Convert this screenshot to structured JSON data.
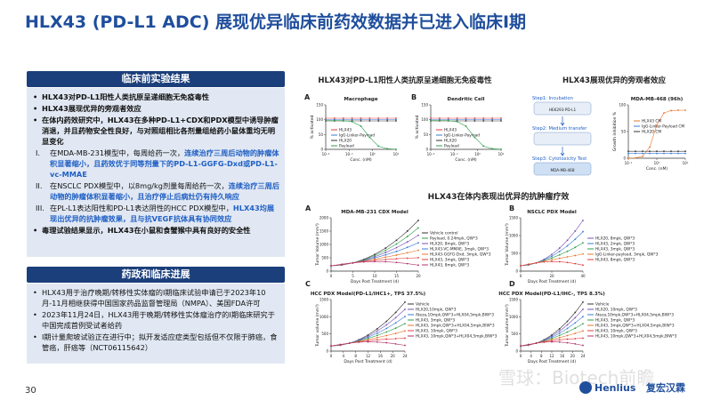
{
  "header": {
    "title": "HLX43 (PD-L1 ADC) 展现优异临床前药效数据并已进入临床I期"
  },
  "preclinical": {
    "heading": "临床前实验结果",
    "items": [
      {
        "marker": "",
        "parts": [
          {
            "text": "HLX43对PD-L1阳性人类抗原呈递细胞无免疫毒性",
            "hl": false
          }
        ],
        "bold": true
      },
      {
        "marker": "",
        "parts": [
          {
            "text": "HLX43展现优异的旁观者效应",
            "hl": false
          }
        ],
        "bold": true
      },
      {
        "marker": "",
        "parts": [
          {
            "text": "在体内药效研究中，HLX43在多种PD-L1+CDX和PDX模型中诱导肿瘤消退，并且药物安全性良好，与对照组相比各剂量组给药小鼠体重均无明显变化",
            "hl": false
          }
        ],
        "bold": true
      },
      {
        "marker": "I.",
        "parts": [
          {
            "text": "在MDA-MB-231模型中，每周给药一次，",
            "hl": false
          },
          {
            "text": "连续治疗三周后动物的肿瘤体积显著缩小，且药效优于同等剂量下的PD-L1-GGFG-Dxd或PD-L1-vc-MMAE",
            "hl": true
          }
        ],
        "bold": false
      },
      {
        "marker": "II.",
        "parts": [
          {
            "text": "在NSCLC PDX模型中，以8mg/kg剂量每周给药一次，",
            "hl": false
          },
          {
            "text": "连续治疗三周后动物的肿瘤体积显著缩小，且治疗停止后病灶仍有持久响应",
            "hl": true
          }
        ],
        "bold": false
      },
      {
        "marker": "III.",
        "parts": [
          {
            "text": "在PL-L1表达阳性和PD-L1表达阴性的HCC PDX模型中，",
            "hl": false
          },
          {
            "text": "HLX43均展现出优异的抗肿瘤效果，且与抗VEGF抗体具有协同效应",
            "hl": true
          }
        ],
        "bold": false
      },
      {
        "marker": "",
        "parts": [
          {
            "text": "毒理试验结果显示，HLX43在小鼠和食蟹猴中具有良好的安全性",
            "hl": false
          }
        ],
        "bold": true
      }
    ]
  },
  "regulatory": {
    "heading": "药政和临床进展",
    "items": [
      "HLX43用于治疗晚期/转移性实体瘤的I期临床试验申请已于2023年10月-11月相继获得中国国家药品监督管理局（NMPA）、美国FDA许可",
      "2023年11月24日，HLX43用于晚期/转移性实体瘤治疗的I期临床研究于中国完成首例受试者给药",
      "I期计量爬坡试验正在进行中；拟开发适应症类型包括但不仅限于肺癌，食管癌，肝癌等（NCT06115642）"
    ]
  },
  "figures": {
    "invitro": {
      "title": "HLX43对PD-L1阳性人类抗原呈递细胞无免疫毒性",
      "panels": [
        {
          "letter": "A",
          "title": "Macrophage",
          "ylabel": "% activated",
          "xlabel": "Conc. (nM)",
          "yticks": [
            "0",
            "50",
            "100",
            "150"
          ],
          "xticks": [
            "10⁻⁴",
            "10⁻²",
            "10⁰",
            "10²"
          ],
          "legend": [
            {
              "name": "HLX43",
              "color": "#e23b3b"
            },
            {
              "name": "IgG-Linker-Payload",
              "color": "#3a7bd5"
            },
            {
              "name": "HLX20",
              "color": "#333333"
            },
            {
              "name": "Payload",
              "color": "#2e9e4a"
            }
          ]
        },
        {
          "letter": "B",
          "title": "Dendritic Cell",
          "ylabel": "% activated",
          "xlabel": "Conc. (nM)",
          "yticks": [
            "0",
            "50",
            "100",
            "150"
          ],
          "xticks": [
            "10⁻⁴",
            "10⁻²",
            "10⁰",
            "10²"
          ],
          "legend": [
            {
              "name": "HLX43",
              "color": "#e23b3b"
            },
            {
              "name": "IgG-Linker-Payload",
              "color": "#3a7bd5"
            },
            {
              "name": "HLX20",
              "color": "#333333"
            },
            {
              "name": "Payload",
              "color": "#2e9e4a"
            }
          ]
        }
      ]
    },
    "bystander": {
      "title": "HLX43展现优异的旁观者效应",
      "steps": [
        "Step1: Incubation",
        "Step2: Medium transfer",
        "Step3: Cytotoxicity Test"
      ],
      "cells": [
        "HEK293-PD-L1",
        "MDA-MB-468"
      ],
      "panel": {
        "title": "MDA-MB-468 (96h)",
        "ylabel": "Growth inhibition %",
        "xlabel": "Conc. (nM)",
        "yticks": [
          "0",
          "50",
          "100"
        ],
        "xticks": [
          "10⁻²",
          "10⁰",
          "10²"
        ],
        "legend": [
          {
            "name": "HLX43 CM",
            "color": "#e8742a"
          },
          {
            "name": "IgG-Linker-Payload CM",
            "color": "#3a7bd5"
          },
          {
            "name": "HLX20 CM",
            "color": "#333333"
          }
        ]
      }
    },
    "invivo": {
      "title": "HLX43在体内表现出优异的抗肿瘤疗效",
      "panels": [
        {
          "letter": "A",
          "title": "MDA-MB-231 CDX Model",
          "ylabel": "Tumor Volume (mm³)",
          "xlabel": "Days Post Treatment (d)",
          "yticks": [
            "0",
            "500",
            "1000",
            "1500",
            "2000"
          ],
          "xticks": [
            "0",
            "5",
            "10",
            "15",
            "20"
          ],
          "legend": [
            {
              "name": "Vehicle control",
              "color": "#333333"
            },
            {
              "name": "Payload, 0.24mpk, QW*3",
              "color": "#2e9e4a"
            },
            {
              "name": "HLX20, 8mpk, QW*3",
              "color": "#7a4fb5"
            },
            {
              "name": "HLX43-VC-MMAE, 3mpk, QW*3",
              "color": "#3a7bd5"
            },
            {
              "name": "HLX43-GGFG-Dxd, 3mpk, QW*3",
              "color": "#e8742a"
            },
            {
              "name": "HLX43, 3mpk, QW*3",
              "color": "#e23b3b"
            },
            {
              "name": "HLX43, 8mpk, QW*3",
              "color": "#b0306a"
            }
          ]
        },
        {
          "letter": "B",
          "title": "NSCLC PDX Model",
          "ylabel": "Tumor Volume (mm³)",
          "xlabel": "Days Post Treatment (d)",
          "yticks": [
            "0",
            "500",
            "1000",
            "1500"
          ],
          "xticks": [
            "0",
            "20",
            "40"
          ],
          "legend": [
            {
              "name": "HLX20, 8mpk, QW*3",
              "color": "#7a4fb5"
            },
            {
              "name": "HLX43, 2mpk, QW*3",
              "color": "#3a7bd5"
            },
            {
              "name": "HLX43, 3mpk, QW*3",
              "color": "#2e9e4a"
            },
            {
              "name": "IgG-Linker-payload, 3mpk, QW*3",
              "color": "#e8742a"
            },
            {
              "name": "HLX43, 8mpk, QW*3",
              "color": "#e23b3b"
            }
          ]
        },
        {
          "letter": "C",
          "title": "HCC PDX Model(PD-L1/IHC1+, TPS 37.5%)",
          "ylabel": "Tumor volume (mm³)",
          "xlabel": "Days Post Treatment (d)",
          "yticks": [
            "0",
            "500",
            "1000",
            "1500"
          ],
          "xticks": [
            "0",
            "4",
            "8",
            "12",
            "16",
            "20",
            "24"
          ],
          "legend": [
            {
              "name": "Vehicle",
              "color": "#333333"
            },
            {
              "name": "HLX20,10mpk, QW*3",
              "color": "#7a4fb5"
            },
            {
              "name": "Ateza,10mpk,QW*3+HLX04,5mpk,BIW*3",
              "color": "#3a7bd5"
            },
            {
              "name": "HLX43, 3mpk, QW*3",
              "color": "#2e9e4a"
            },
            {
              "name": "HLX43, 3mpk,QW*3+HLX04,5mpk,BIW*3",
              "color": "#e8742a"
            },
            {
              "name": "HLX43, 10mpk, QW*3",
              "color": "#e23b3b"
            },
            {
              "name": "HLX43, 10mpk,QW*3+HLX04,5mpk,BIW*3",
              "color": "#b0306a"
            }
          ]
        },
        {
          "letter": "D",
          "title": "HCC PDX Model(PD-L1/IHC-, TPS 8.3%)",
          "ylabel": "Tumor volume (mm³)",
          "xlabel": "Days Post Treatment (d)",
          "yticks": [
            "0",
            "500",
            "1000",
            "1500"
          ],
          "xticks": [
            "0",
            "4",
            "8",
            "12",
            "16",
            "20",
            "24"
          ],
          "legend": [
            {
              "name": "Vehicle",
              "color": "#333333"
            },
            {
              "name": "HLX20, 10mpk, QW*3",
              "color": "#7a4fb5"
            },
            {
              "name": "Ateza,10mpk,QW*3+HLX04,5mpk,BIW*3",
              "color": "#3a7bd5"
            },
            {
              "name": "HLX43, 3mpk, QW*3",
              "color": "#2e9e4a"
            },
            {
              "name": "HLX43, 3mpk,QW*3+HLX04,5mpk,BIW*3",
              "color": "#e8742a"
            },
            {
              "name": "HLX43, 10mpk, QW*3",
              "color": "#e23b3b"
            },
            {
              "name": "HLX43, 10mpk,QW*3+HLX04,5mpk,BIW*3",
              "color": "#b0306a"
            }
          ]
        }
      ]
    }
  },
  "footer": {
    "page": "30",
    "logo": "Henlius",
    "logo_cn": "复宏汉霖",
    "watermark": "雪球：Biotech前瞻"
  }
}
